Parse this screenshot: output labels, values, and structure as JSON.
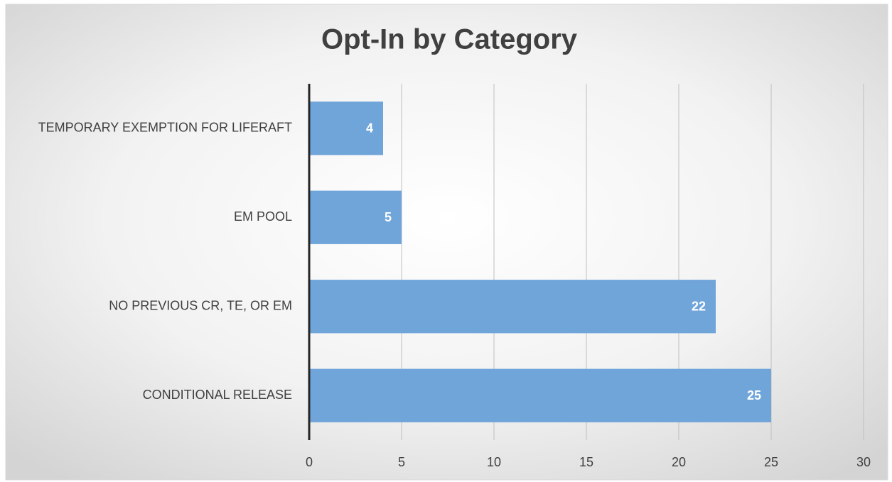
{
  "chart_data": {
    "type": "bar",
    "orientation": "horizontal",
    "title": "Opt-In by Category",
    "categories": [
      "TEMPORARY EXEMPTION FOR LIFERAFT",
      "EM POOL",
      "NO PREVIOUS CR, TE, OR EM",
      "CONDITIONAL RELEASE"
    ],
    "values": [
      4,
      5,
      22,
      25
    ],
    "color": "#70a5da",
    "xlim": [
      0,
      30
    ],
    "xticks": [
      0,
      5,
      10,
      15,
      20,
      25,
      30
    ],
    "grid": true
  }
}
